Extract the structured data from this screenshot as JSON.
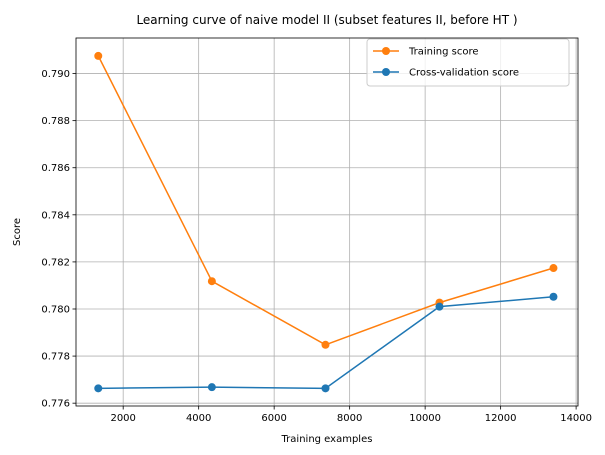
{
  "chart_data": {
    "type": "line",
    "title": "Learning curve of naive model II (subset features II, before HT )",
    "xlabel": "Training examples",
    "ylabel": "Score",
    "xlim": [
      750,
      14050
    ],
    "ylim": [
      0.77588,
      0.79151
    ],
    "xticks": [
      2000,
      4000,
      6000,
      8000,
      10000,
      12000,
      14000
    ],
    "xtick_labels": [
      "2000",
      "4000",
      "6000",
      "8000",
      "10000",
      "12000",
      "14000"
    ],
    "yticks": [
      0.776,
      0.778,
      0.78,
      0.782,
      0.784,
      0.786,
      0.788,
      0.79
    ],
    "ytick_labels": [
      "0.776",
      "0.778",
      "0.780",
      "0.782",
      "0.784",
      "0.786",
      "0.788",
      "0.790"
    ],
    "grid": true,
    "legend": "top-right",
    "x": [
      1340,
      4350,
      7360,
      10380,
      13400
    ],
    "series": [
      {
        "name": "Training score",
        "color": "#ff7f0e",
        "values": [
          0.79075,
          0.78118,
          0.77848,
          0.78027,
          0.78174
        ]
      },
      {
        "name": "Cross-validation score",
        "color": "#1f77b4",
        "values": [
          0.77663,
          0.77668,
          0.77663,
          0.7801,
          0.78052
        ]
      }
    ]
  }
}
